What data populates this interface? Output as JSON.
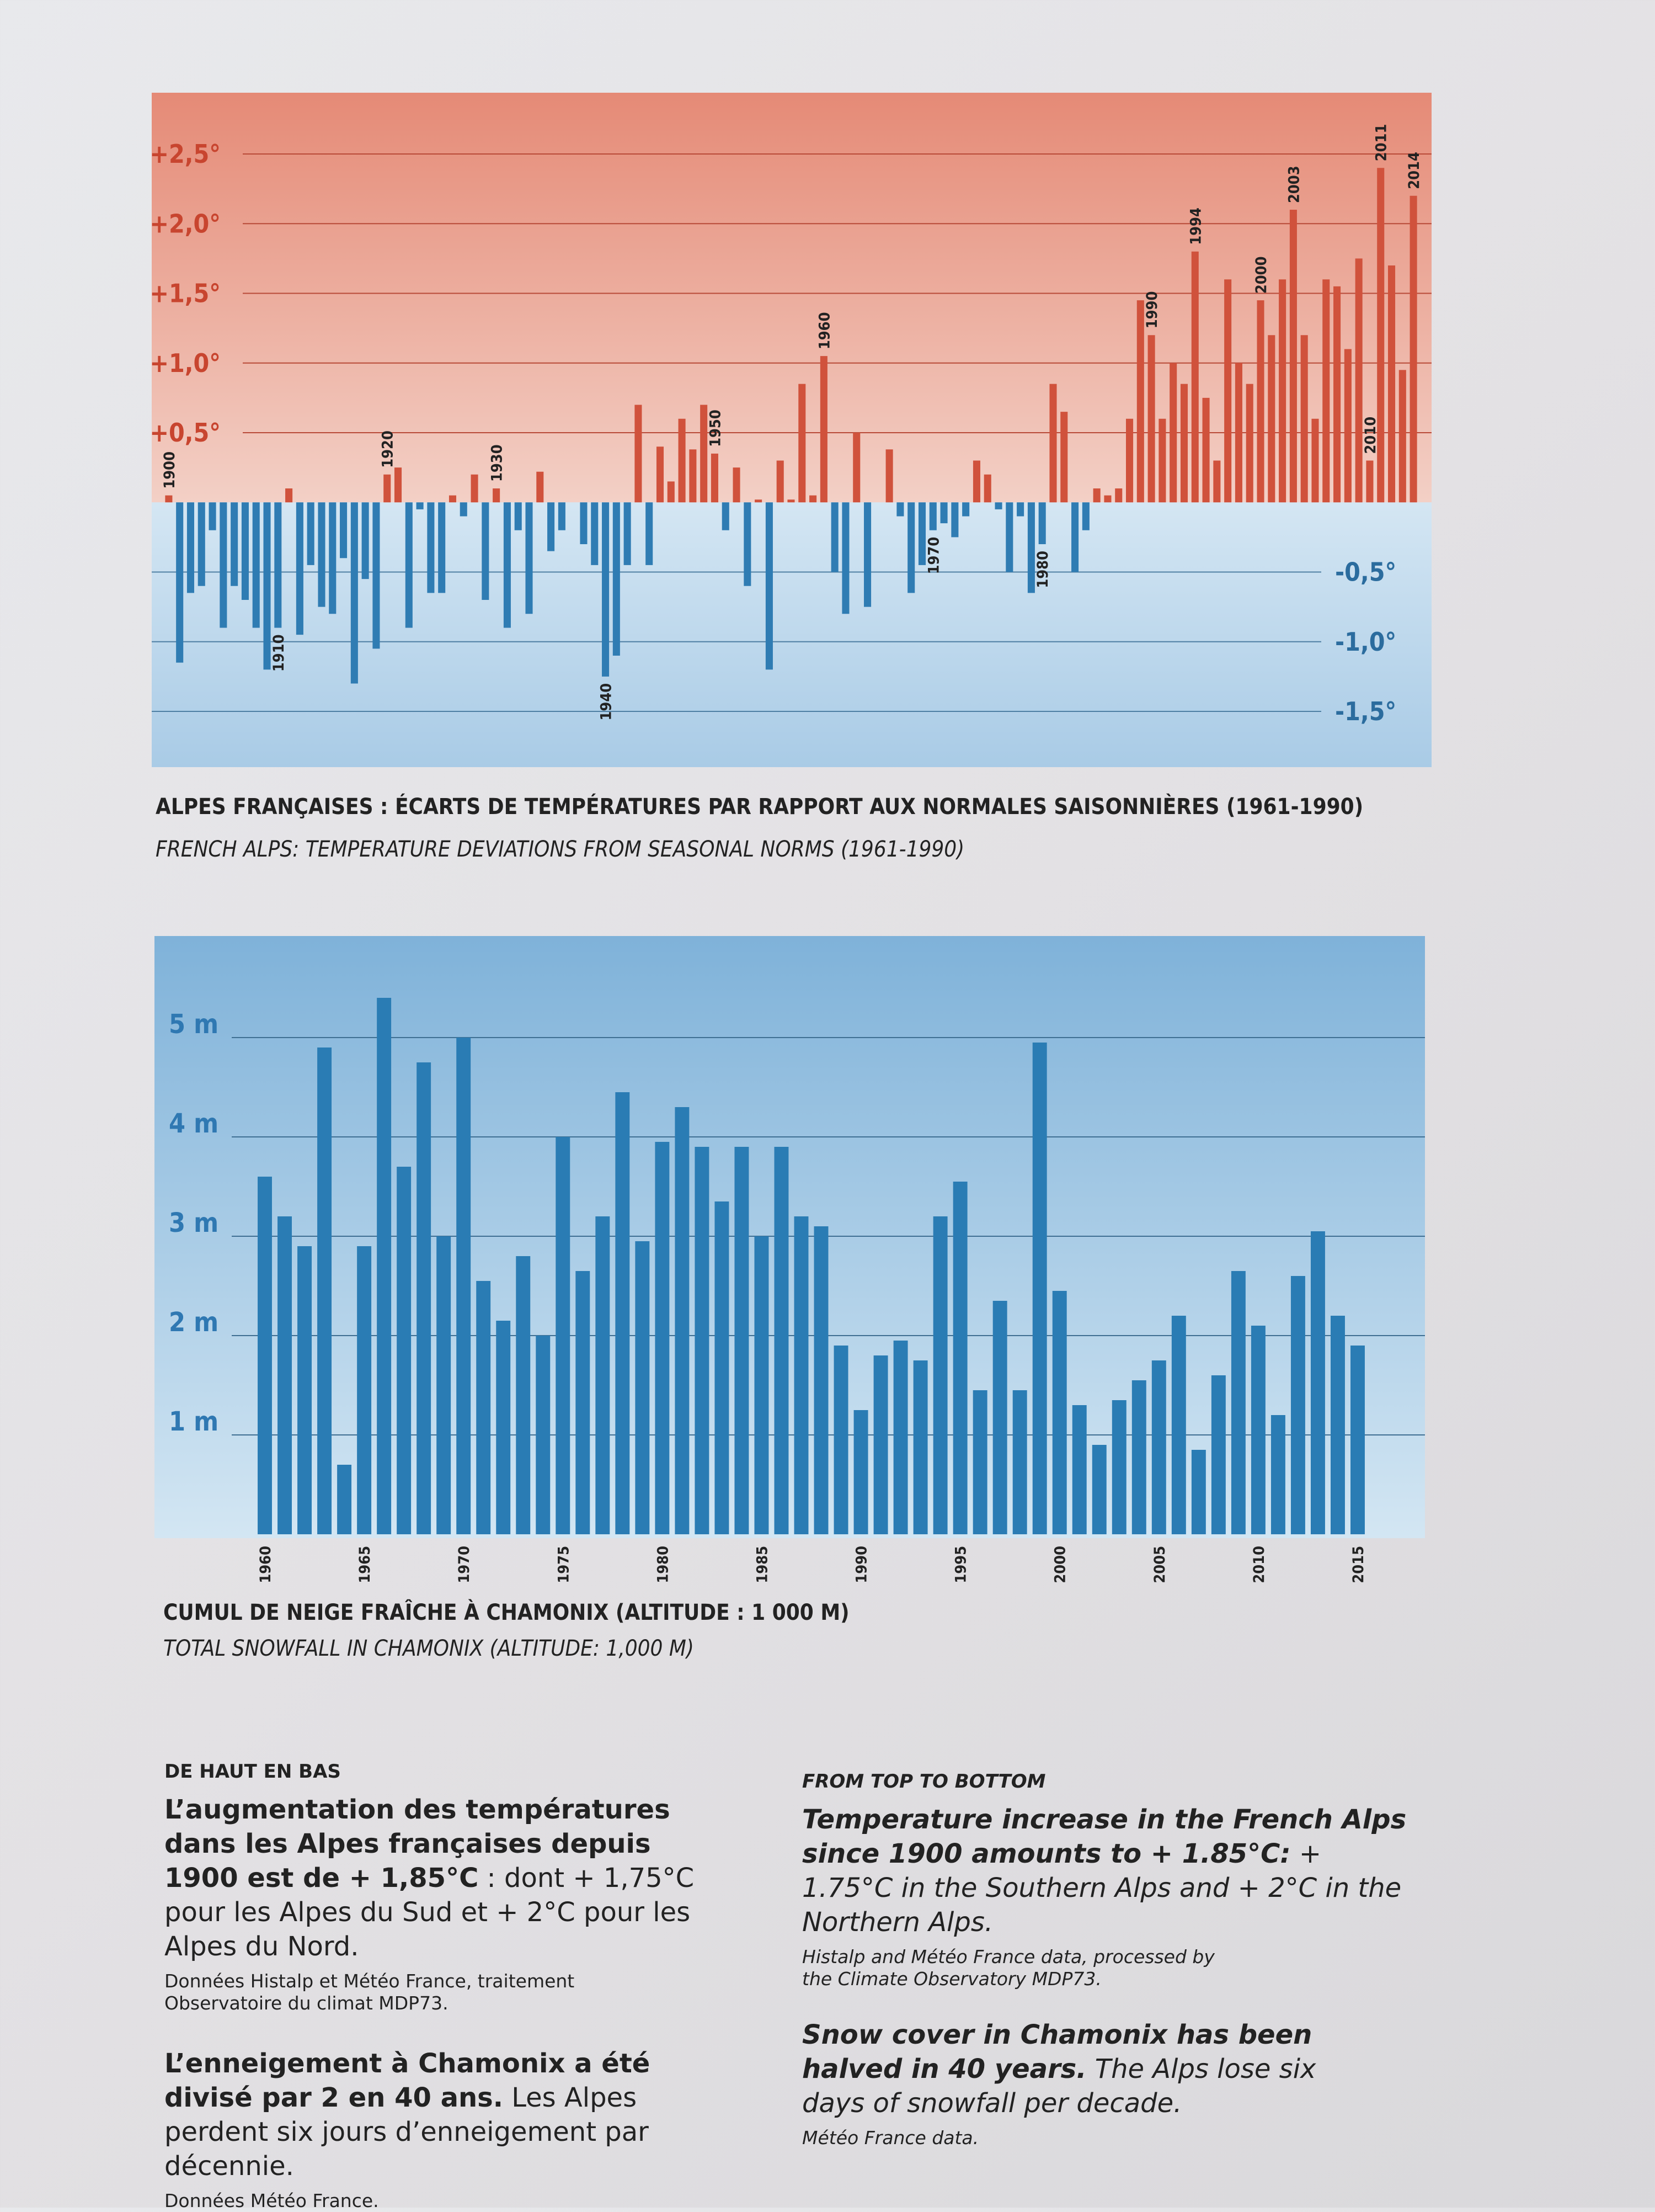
{
  "chart_data": [
    {
      "type": "bar",
      "title": "ALPES FRANÇAISES : ÉCARTS DE TEMPÉRATURES PAR RAPPORT AUX NORMALES SAISONNIÈRES (1961-1990)",
      "subtitle": "FRENCH ALPS: TEMPERATURE DEVIATIONS FROM SEASONAL NORMS (1961-1990)",
      "categories": [
        "1900",
        null,
        null,
        null,
        null,
        null,
        null,
        null,
        null,
        null,
        "1910",
        null,
        null,
        null,
        null,
        null,
        null,
        null,
        null,
        null,
        "1920",
        null,
        null,
        null,
        null,
        null,
        null,
        null,
        null,
        null,
        "1930",
        null,
        null,
        null,
        null,
        null,
        null,
        null,
        null,
        null,
        "1940",
        null,
        null,
        null,
        null,
        null,
        null,
        null,
        null,
        null,
        "1950",
        null,
        null,
        null,
        null,
        null,
        null,
        null,
        null,
        null,
        "1960",
        null,
        null,
        null,
        null,
        null,
        null,
        null,
        null,
        null,
        "1970",
        null,
        null,
        null,
        null,
        null,
        null,
        null,
        null,
        null,
        "1980",
        null,
        null,
        null,
        null,
        null,
        null,
        null,
        null,
        null,
        "1990",
        null,
        null,
        null,
        "1994",
        null,
        null,
        null,
        null,
        null,
        "2000",
        null,
        null,
        "2003",
        null,
        null,
        null,
        null,
        null,
        null,
        "2010",
        "2011",
        null,
        null,
        "2014"
      ],
      "values": [
        0.05,
        -1.15,
        -0.65,
        -0.6,
        -0.2,
        -0.9,
        -0.6,
        -0.7,
        -0.9,
        -1.2,
        -0.9,
        0.1,
        -0.95,
        -0.45,
        -0.75,
        -0.8,
        -0.4,
        -1.3,
        -0.55,
        -1.05,
        0.2,
        0.25,
        -0.9,
        -0.05,
        -0.65,
        -0.65,
        0.05,
        -0.1,
        0.2,
        -0.7,
        0.1,
        -0.9,
        -0.2,
        -0.8,
        0.22,
        -0.35,
        -0.2,
        0,
        -0.3,
        -0.45,
        -1.25,
        -1.1,
        -0.45,
        0.7,
        -0.45,
        0.4,
        0.15,
        0.6,
        0.38,
        0.7,
        0.35,
        -0.2,
        0.25,
        -0.6,
        0.02,
        -1.2,
        0.3,
        0.02,
        0.85,
        0.05,
        1.05,
        -0.5,
        -0.8,
        0.5,
        -0.75,
        0,
        0.38,
        -0.1,
        -0.65,
        -0.45,
        -0.2,
        -0.15,
        -0.25,
        -0.1,
        0.3,
        0.2,
        -0.05,
        -0.5,
        -0.1,
        -0.65,
        -0.3,
        0.85,
        0.65,
        -0.5,
        -0.2,
        0.1,
        0.05,
        0.1,
        0.6,
        1.45,
        1.2,
        0.6,
        1.0,
        0.85,
        1.8,
        0.75,
        0.3,
        1.6,
        1.0,
        0.85,
        1.45,
        1.2,
        1.6,
        2.1,
        1.2,
        0.6,
        1.6,
        1.55,
        1.1,
        1.75,
        0.3,
        2.4,
        1.7,
        0.95,
        2.2
      ],
      "positive_color": "#d0523c",
      "negative_color": "#2f7cb3",
      "ylim": [
        -1.9,
        2.9
      ],
      "yticks": [
        {
          "value": 2.5,
          "label": "+2,5°"
        },
        {
          "value": 2.0,
          "label": "+2,0°"
        },
        {
          "value": 1.5,
          "label": "+1,5°"
        },
        {
          "value": 1.0,
          "label": "+1,0°"
        },
        {
          "value": 0.5,
          "label": "+0,5°"
        },
        {
          "value": -0.5,
          "label": "-0,5°"
        },
        {
          "value": -1.0,
          "label": "-1,0°"
        },
        {
          "value": -1.5,
          "label": "-1,5°"
        }
      ],
      "grid": true
    },
    {
      "type": "bar",
      "title": "CUMUL DE NEIGE FRAÎCHE À CHAMONIX (ALTITUDE : 1 000 M)",
      "subtitle": "TOTAL SNOWFALL IN CHAMONIX (ALTITUDE: 1,000 M)",
      "categories": [
        "1960",
        null,
        null,
        null,
        null,
        "1965",
        null,
        null,
        null,
        null,
        "1970",
        null,
        null,
        null,
        null,
        "1975",
        null,
        null,
        null,
        null,
        "1980",
        null,
        null,
        null,
        null,
        "1985",
        null,
        null,
        null,
        null,
        "1990",
        null,
        null,
        null,
        null,
        "1995",
        null,
        null,
        null,
        null,
        "2000",
        null,
        null,
        null,
        null,
        "2005",
        null,
        null,
        null,
        null,
        "2010",
        null,
        null,
        null,
        null,
        "2015"
      ],
      "values": [
        3.6,
        3.2,
        2.9,
        4.9,
        0.7,
        2.9,
        5.4,
        3.7,
        4.75,
        3.0,
        5.0,
        2.55,
        2.15,
        2.8,
        2.0,
        4.0,
        2.65,
        3.2,
        4.45,
        2.95,
        3.95,
        4.3,
        3.9,
        3.35,
        3.9,
        3.0,
        3.9,
        3.2,
        3.1,
        1.9,
        1.25,
        1.8,
        1.95,
        1.75,
        3.2,
        3.55,
        1.45,
        2.35,
        1.45,
        4.95,
        2.45,
        1.3,
        0.9,
        1.35,
        1.55,
        1.75,
        2.2,
        0.85,
        1.6,
        2.65,
        2.1,
        1.2,
        2.6,
        3.05,
        2.2,
        1.9
      ],
      "color": "#2a7cb4",
      "ylim": [
        0,
        6
      ],
      "yticks": [
        {
          "value": 1,
          "label": "1 m"
        },
        {
          "value": 2,
          "label": "2 m"
        },
        {
          "value": 3,
          "label": "3 m"
        },
        {
          "value": 4,
          "label": "4 m"
        },
        {
          "value": 5,
          "label": "5 m"
        }
      ],
      "grid": true
    }
  ],
  "notes": {
    "fr": {
      "heading": "DE HAUT EN BAS",
      "p1": {
        "bold": "L’augmentation des températures dans les Alpes françaises depuis 1900 est de + 1,85°C",
        "rest": " : dont + 1,75°C pour les Alpes du Sud et + 2°C pour les Alpes du Nord.",
        "source": "Données Histalp et Météo France, traitement Observatoire du climat MDP73."
      },
      "p2": {
        "bold": "L’enneigement à Chamonix a été divisé par 2 en 40 ans.",
        "rest": " Les Alpes perdent six jours d’enneigement par décennie.",
        "source": "Données Météo France."
      }
    },
    "en": {
      "heading": "FROM TOP TO BOTTOM",
      "p1": {
        "bold": "Temperature increase in the French Alps since 1900 amounts to + 1.85°C:",
        "rest": " + 1.75°C in the Southern Alps and + 2°C in the Northern Alps.",
        "source": "Histalp and Météo France data, processed by the Climate Observatory MDP73."
      },
      "p2": {
        "bold": "Snow cover in Chamonix has been halved in 40 years.",
        "rest": " The Alps lose six days of snowfall per decade.",
        "source": "Météo France data."
      }
    }
  }
}
